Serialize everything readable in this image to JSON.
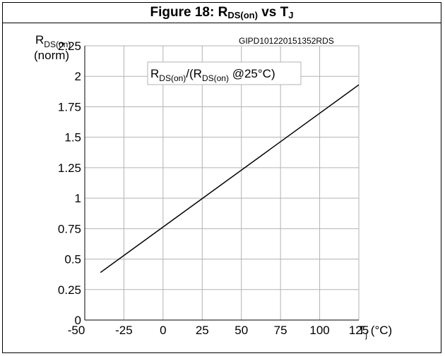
{
  "title": {
    "prefix": "Figure 18: R",
    "sub1": "DS(on)",
    "middle": " vs T",
    "sub2": "J"
  },
  "ylabel": {
    "main": "R",
    "sub": "DS(on)",
    "unit": "(norm)"
  },
  "xlabel": {
    "main": "T",
    "sub": "j",
    "unit": " (°C)"
  },
  "figure_code": "GIPD101220151352RDS",
  "legend": {
    "r1": "R",
    "s1": "DS(on)",
    "mid": "/(R",
    "s2": "DS(on)",
    "tail": " @25°C)"
  },
  "chart_data": {
    "type": "line",
    "x": [
      -40,
      125
    ],
    "series": [
      {
        "values": [
          0.39,
          1.93
        ]
      }
    ],
    "xlim": [
      -50,
      125
    ],
    "ylim": [
      0,
      2.25
    ],
    "xticks": [
      "-50",
      "-25",
      "0",
      "25",
      "50",
      "75",
      "100",
      "125"
    ],
    "yticks": [
      "0",
      "0.25",
      "0.5",
      "0.75",
      "1",
      "1.25",
      "1.5",
      "1.75",
      "2",
      "2.25"
    ],
    "grid": true,
    "line_color": "#000000",
    "grid_color": "#b3b3b3"
  }
}
